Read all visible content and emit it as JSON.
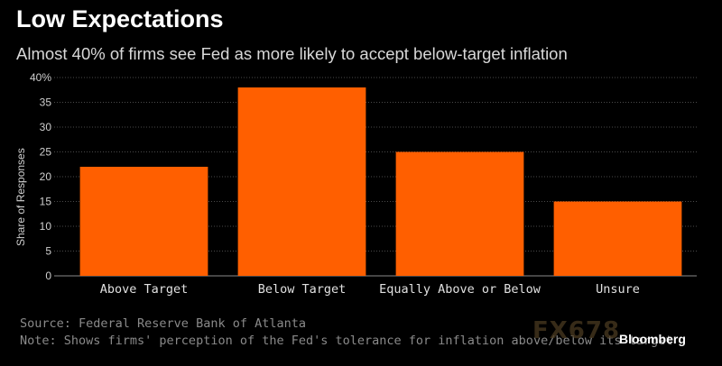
{
  "header": {
    "title": "Low Expectations",
    "subtitle": "Almost 40% of firms see Fed as more likely to accept below-target inflation"
  },
  "chart_data": {
    "type": "bar",
    "categories": [
      "Above Target",
      "Below Target",
      "Equally Above or Below",
      "Unsure"
    ],
    "values": [
      22,
      38,
      25,
      15
    ],
    "title": "Low Expectations",
    "subtitle": "Almost 40% of firms see Fed as more likely to accept below-target inflation",
    "xlabel": "",
    "ylabel": "Share of Responses",
    "ylim": [
      0,
      40
    ],
    "yticks": [
      "0",
      "5",
      "10",
      "15",
      "20",
      "25",
      "30",
      "35",
      "40%"
    ],
    "grid": true,
    "bar_color": "#ff5f00"
  },
  "footer": {
    "source": "Source: Federal Reserve Bank of Atlanta",
    "note": "Note: Shows firms' perception of the Fed's tolerance for inflation above/below its target",
    "watermark": "FX678",
    "brand": "Bloomberg"
  }
}
